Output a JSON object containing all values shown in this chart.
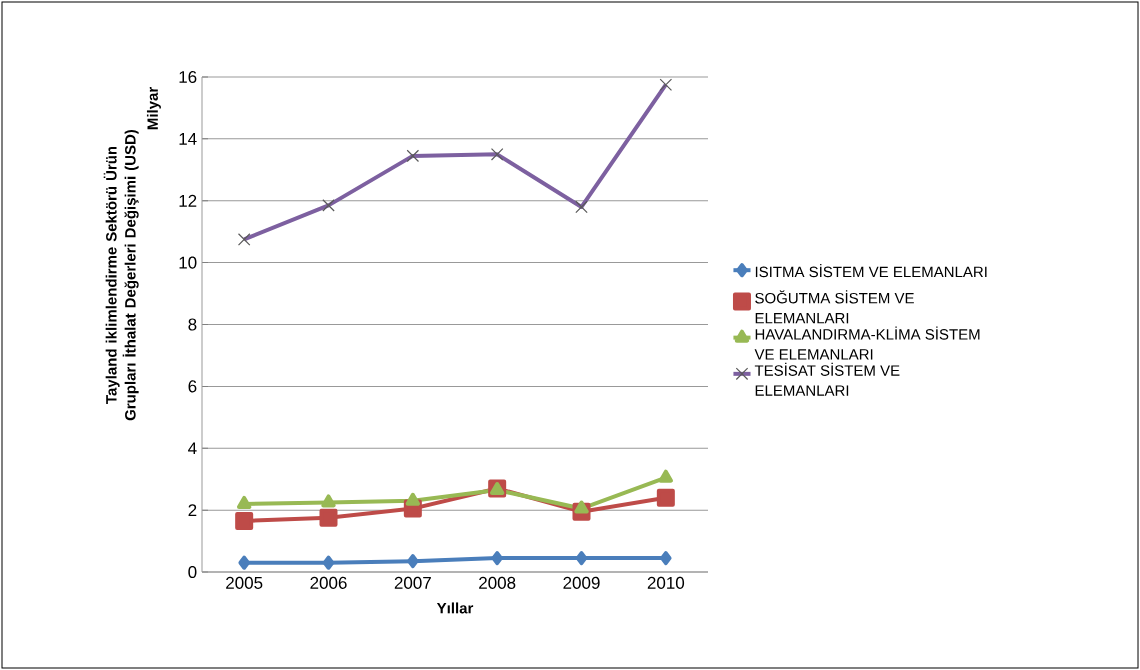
{
  "chart_data": {
    "type": "line",
    "xlabel": "Yıllar",
    "ylabel": "Tayland iklimlendirme Sektörü Ürün Grupları İthalat Değerleri Değişimi (USD)",
    "annotations": [
      "Milyar"
    ],
    "categories": [
      "2005",
      "2006",
      "2007",
      "2008",
      "2009",
      "2010"
    ],
    "ylim": [
      0,
      16
    ],
    "yticks": [
      0,
      2,
      4,
      6,
      8,
      10,
      12,
      14,
      16
    ],
    "grid": "y",
    "legend": "right",
    "series": [
      {
        "name": "ISITMA SİSTEM VE ELEMANLARI",
        "color": "#4a7ebb",
        "marker": "diamond",
        "values": [
          0.3,
          0.3,
          0.35,
          0.45,
          0.45,
          0.45
        ]
      },
      {
        "name": "SOĞUTMA SİSTEM VE ELEMANLARI",
        "color": "#be4b48",
        "marker": "square",
        "values": [
          1.65,
          1.75,
          2.05,
          2.7,
          1.95,
          2.4
        ]
      },
      {
        "name": "HAVALANDIRMA-KLİMA SİSTEM VE ELEMANLARI",
        "color": "#98b954",
        "marker": "triangle",
        "values": [
          2.2,
          2.25,
          2.3,
          2.65,
          2.05,
          3.05
        ]
      },
      {
        "name": "TESİSAT SİSTEM VE ELEMANLARI",
        "color": "#7d60a0",
        "marker": "cross",
        "values": [
          10.75,
          11.85,
          13.45,
          13.5,
          11.8,
          15.75
        ]
      }
    ]
  }
}
